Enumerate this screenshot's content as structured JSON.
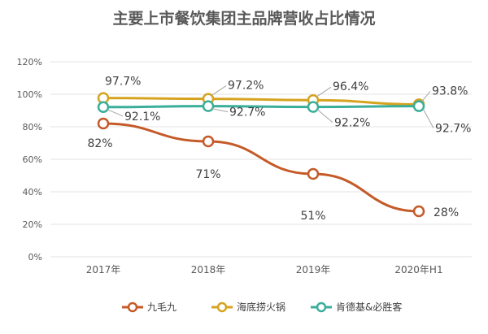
{
  "chart_data": {
    "type": "line",
    "title": "主要上市餐饮集团主品牌营收占比情况",
    "categories": [
      "2017年",
      "2018年",
      "2019年",
      "2020年H1"
    ],
    "y_tick_labels": [
      "0%",
      "20%",
      "40%",
      "60%",
      "80%",
      "100%",
      "120%"
    ],
    "ylim": [
      0,
      120
    ],
    "y_unit": "%",
    "grid": true,
    "legend_position": "bottom",
    "series": [
      {
        "name": "九毛九",
        "color": "#C55A28",
        "values": [
          82,
          71,
          51,
          28
        ],
        "labels": [
          "82%",
          "71%",
          "51%",
          "28%"
        ]
      },
      {
        "name": "海底捞火锅",
        "color": "#D6A31F",
        "values": [
          97.7,
          97.2,
          96.4,
          93.8
        ],
        "labels": [
          "97.7%",
          "97.2%",
          "96.4%",
          "93.8%"
        ]
      },
      {
        "name": "肯德基&必胜客",
        "color": "#3AAE9A",
        "values": [
          92.1,
          92.7,
          92.2,
          92.7
        ],
        "labels": [
          "92.1%",
          "92.7%",
          "92.2%",
          "92.7%"
        ]
      }
    ]
  }
}
